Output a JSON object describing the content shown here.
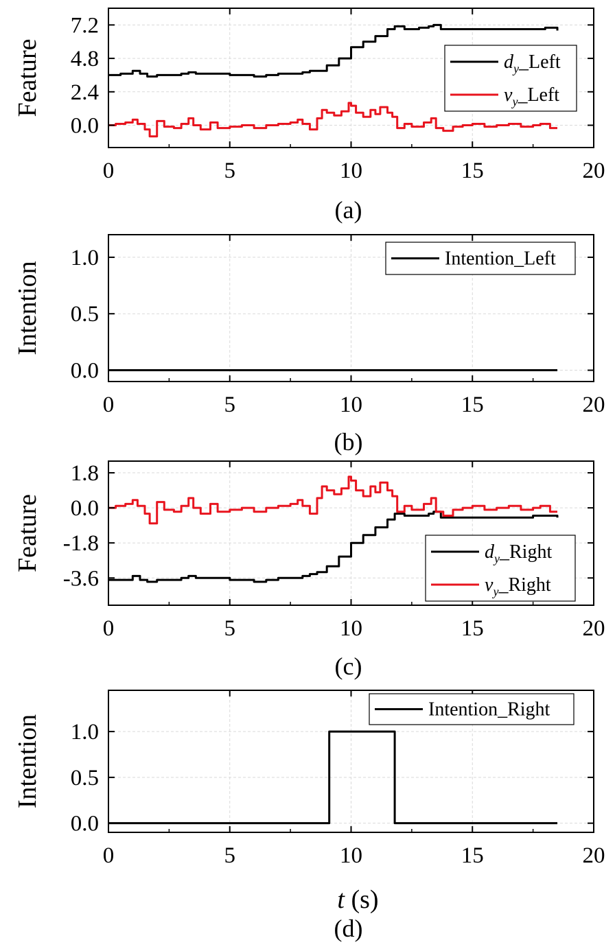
{
  "colors": {
    "black_series": "#000000",
    "red_series": "#e8141e",
    "grid": "#d9d9d9"
  },
  "chart_data": [
    {
      "type": "line",
      "panel_label": "(a)",
      "ylabel": "Feature",
      "xlabel": "",
      "xlim": [
        0,
        20
      ],
      "ylim": [
        -1.6,
        8.4
      ],
      "xticks": [
        "0",
        "5",
        "10",
        "15",
        "20"
      ],
      "yticks": [
        "7.2",
        "4.8",
        "2.4",
        "0.0"
      ],
      "ytick_values": [
        7.2,
        4.8,
        2.4,
        0.0
      ],
      "grid": true,
      "legend_position": "right",
      "series": [
        {
          "name": "d_y_Left",
          "legend_main": "d",
          "legend_sub": "y",
          "legend_rest": "_Left",
          "color": "#000000",
          "x": [
            0,
            0.5,
            1.0,
            1.3,
            1.6,
            2.0,
            2.5,
            3.0,
            3.3,
            3.6,
            4.2,
            5.0,
            6.0,
            6.5,
            7.0,
            7.5,
            8.0,
            8.3,
            8.6,
            9.0,
            9.5,
            10.0,
            10.5,
            11.0,
            11.5,
            11.8,
            12.2,
            12.8,
            13.2,
            13.4,
            13.7,
            14.5,
            15.5,
            16.5,
            17.5,
            18.0,
            18.5
          ],
          "y": [
            3.6,
            3.7,
            3.9,
            3.7,
            3.5,
            3.6,
            3.6,
            3.7,
            3.8,
            3.7,
            3.7,
            3.6,
            3.5,
            3.6,
            3.7,
            3.7,
            3.8,
            3.9,
            3.9,
            4.3,
            4.8,
            5.6,
            6.0,
            6.4,
            6.9,
            7.1,
            6.9,
            7.0,
            7.1,
            7.2,
            6.9,
            6.9,
            6.9,
            6.9,
            6.9,
            7.0,
            6.8
          ]
        },
        {
          "name": "v_y_Left",
          "legend_main": "v",
          "legend_sub": "y",
          "legend_rest": "_Left",
          "color": "#e8141e",
          "x": [
            0,
            0.3,
            0.7,
            1.0,
            1.2,
            1.5,
            1.7,
            2.0,
            2.3,
            2.7,
            3.0,
            3.3,
            3.5,
            3.8,
            4.2,
            4.5,
            5.0,
            5.5,
            6.0,
            6.5,
            7.0,
            7.5,
            7.8,
            8.0,
            8.3,
            8.6,
            8.8,
            9.0,
            9.3,
            9.6,
            9.9,
            10.0,
            10.2,
            10.5,
            10.8,
            11.0,
            11.2,
            11.5,
            11.7,
            11.9,
            12.2,
            12.5,
            13.0,
            13.3,
            13.5,
            13.8,
            14.2,
            14.6,
            15.0,
            15.5,
            16.0,
            16.5,
            17.0,
            17.5,
            17.8,
            18.2,
            18.5
          ],
          "y": [
            0.0,
            0.1,
            0.2,
            0.4,
            0.1,
            -0.3,
            -0.8,
            0.3,
            -0.1,
            -0.2,
            0.1,
            0.5,
            0.0,
            -0.3,
            0.2,
            -0.2,
            -0.1,
            0.0,
            -0.2,
            0.0,
            0.1,
            0.2,
            0.4,
            0.1,
            -0.3,
            0.5,
            1.1,
            0.9,
            0.7,
            1.0,
            1.6,
            1.4,
            0.9,
            0.6,
            1.1,
            0.8,
            1.3,
            0.9,
            0.6,
            -0.2,
            0.1,
            -0.1,
            0.2,
            0.5,
            -0.2,
            -0.4,
            -0.1,
            0.0,
            0.1,
            -0.1,
            0.0,
            0.1,
            -0.1,
            0.0,
            0.1,
            -0.2,
            -0.2
          ]
        }
      ]
    },
    {
      "type": "line",
      "panel_label": "(b)",
      "ylabel": "Intention",
      "xlabel": "",
      "xlim": [
        0,
        20
      ],
      "ylim": [
        -0.1,
        1.2
      ],
      "xticks": [
        "0",
        "5",
        "10",
        "15",
        "20"
      ],
      "yticks": [
        "1.0",
        "0.5",
        "0.0"
      ],
      "ytick_values": [
        1.0,
        0.5,
        0.0
      ],
      "grid": true,
      "legend_position": "top-right",
      "series": [
        {
          "name": "Intention_Left",
          "legend_main": "Intention_Left",
          "legend_sub": "",
          "legend_rest": "",
          "color": "#000000",
          "x": [
            0,
            18.5
          ],
          "y": [
            0,
            0
          ]
        }
      ]
    },
    {
      "type": "line",
      "panel_label": "(c)",
      "ylabel": "Feature",
      "xlabel": "",
      "xlim": [
        0,
        20
      ],
      "ylim": [
        -5.0,
        2.4
      ],
      "xticks": [
        "0",
        "5",
        "10",
        "15",
        "20"
      ],
      "yticks": [
        "1.8",
        "0.0",
        "-1.8",
        "-3.6"
      ],
      "ytick_values": [
        1.8,
        0.0,
        -1.8,
        -3.6
      ],
      "grid": true,
      "legend_position": "bottom-right",
      "series": [
        {
          "name": "d_y_Right",
          "legend_main": "d",
          "legend_sub": "y",
          "legend_rest": "_Right",
          "color": "#000000",
          "x": [
            0,
            0.5,
            1.0,
            1.3,
            1.6,
            2.0,
            2.5,
            3.0,
            3.3,
            3.6,
            4.2,
            5.0,
            6.0,
            6.5,
            7.0,
            7.5,
            8.0,
            8.3,
            8.6,
            9.0,
            9.5,
            10.0,
            10.5,
            11.0,
            11.5,
            11.8,
            12.2,
            12.8,
            13.2,
            13.4,
            13.7,
            14.5,
            15.5,
            16.5,
            17.5,
            18.0,
            18.5
          ],
          "y": [
            -3.7,
            -3.7,
            -3.5,
            -3.7,
            -3.8,
            -3.7,
            -3.7,
            -3.6,
            -3.5,
            -3.6,
            -3.6,
            -3.7,
            -3.8,
            -3.7,
            -3.6,
            -3.6,
            -3.5,
            -3.4,
            -3.3,
            -3.0,
            -2.5,
            -1.8,
            -1.4,
            -1.0,
            -0.6,
            -0.3,
            -0.4,
            -0.4,
            -0.3,
            -0.2,
            -0.5,
            -0.5,
            -0.5,
            -0.5,
            -0.4,
            -0.4,
            -0.5
          ]
        },
        {
          "name": "v_y_Right",
          "legend_main": "v",
          "legend_sub": "y",
          "legend_rest": "_Right",
          "color": "#e8141e",
          "x": [
            0,
            0.3,
            0.7,
            1.0,
            1.2,
            1.5,
            1.7,
            2.0,
            2.3,
            2.7,
            3.0,
            3.3,
            3.5,
            3.8,
            4.2,
            4.5,
            5.0,
            5.5,
            6.0,
            6.5,
            7.0,
            7.5,
            7.8,
            8.0,
            8.3,
            8.6,
            8.8,
            9.0,
            9.3,
            9.6,
            9.9,
            10.0,
            10.2,
            10.5,
            10.8,
            11.0,
            11.2,
            11.5,
            11.7,
            11.9,
            12.2,
            12.5,
            13.0,
            13.3,
            13.5,
            13.8,
            14.2,
            14.6,
            15.0,
            15.5,
            16.0,
            16.5,
            17.0,
            17.5,
            17.8,
            18.2,
            18.5
          ],
          "y": [
            0.0,
            0.1,
            0.2,
            0.4,
            0.1,
            -0.3,
            -0.8,
            0.3,
            -0.1,
            -0.2,
            0.1,
            0.5,
            0.0,
            -0.3,
            0.2,
            -0.2,
            -0.1,
            0.0,
            -0.2,
            0.0,
            0.1,
            0.2,
            0.4,
            0.1,
            -0.3,
            0.5,
            1.1,
            0.9,
            0.7,
            1.0,
            1.6,
            1.4,
            0.9,
            0.6,
            1.1,
            0.8,
            1.3,
            0.9,
            0.6,
            -0.2,
            0.1,
            -0.1,
            0.2,
            0.5,
            -0.2,
            -0.4,
            -0.1,
            0.0,
            0.1,
            -0.1,
            0.0,
            0.1,
            -0.1,
            0.0,
            0.1,
            -0.2,
            -0.2
          ]
        }
      ]
    },
    {
      "type": "line",
      "panel_label": "(d)",
      "ylabel": "Intention",
      "xlabel": "t (s)",
      "xlabel_var": "t",
      "xlabel_unit": " (s)",
      "xlim": [
        0,
        20
      ],
      "ylim": [
        -0.1,
        1.45
      ],
      "xticks": [
        "0",
        "5",
        "10",
        "15",
        "20"
      ],
      "yticks": [
        "1.0",
        "0.5",
        "0.0"
      ],
      "ytick_values": [
        1.0,
        0.5,
        0.0
      ],
      "grid": true,
      "legend_position": "top-right",
      "series": [
        {
          "name": "Intention_Right",
          "legend_main": "Intention_Right",
          "legend_sub": "",
          "legend_rest": "",
          "color": "#000000",
          "x": [
            0,
            9.1,
            9.1,
            11.8,
            11.8,
            18.5
          ],
          "y": [
            0,
            0,
            1,
            1,
            0,
            0
          ]
        }
      ]
    }
  ]
}
